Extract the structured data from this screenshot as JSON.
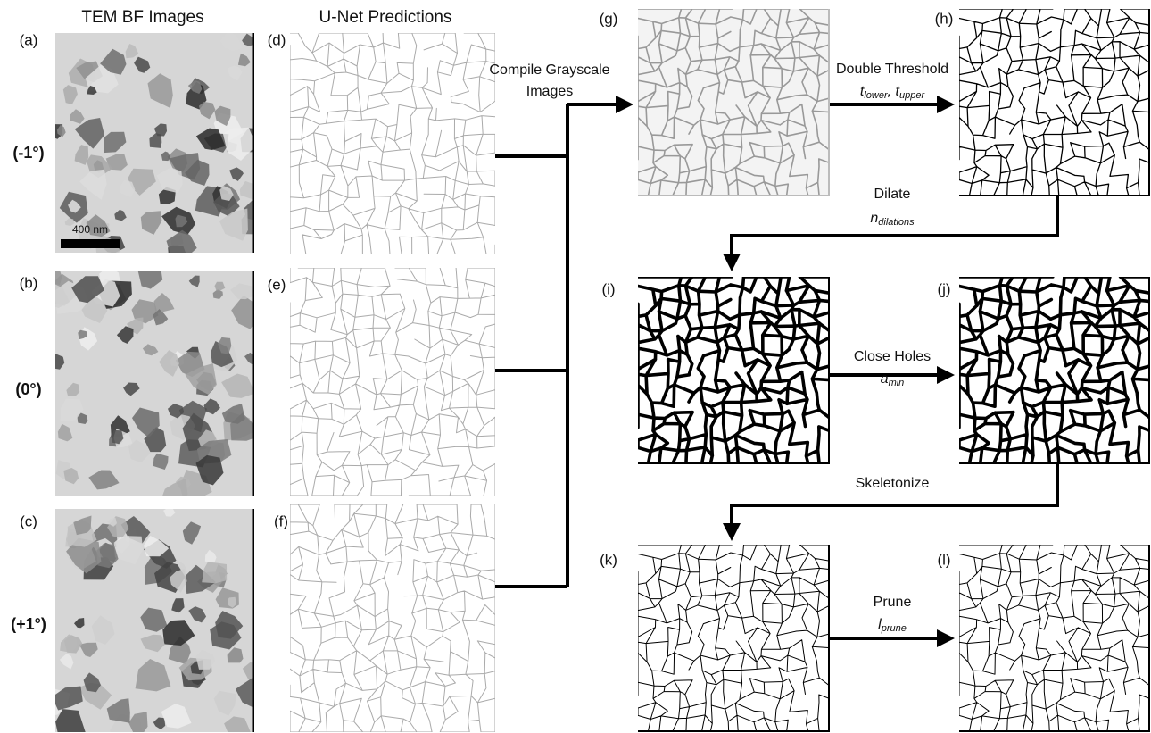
{
  "columns": {
    "tem": "TEM BF Images",
    "unet": "U-Net Predictions"
  },
  "rows": [
    "(-1°)",
    "(0°)",
    "(+1°)"
  ],
  "panels": [
    "(a)",
    "(b)",
    "(c)",
    "(d)",
    "(e)",
    "(f)",
    "(g)",
    "(h)",
    "(i)",
    "(j)",
    "(k)",
    "(l)"
  ],
  "scale_bar": "400 nm",
  "steps": [
    {
      "label": [
        "Compile Grayscale",
        "Images"
      ]
    },
    {
      "label": [
        "Double Threshold"
      ],
      "param": [
        {
          "base": "t",
          "sub": "lower"
        },
        {
          "base": ", t",
          "sub": "upper"
        }
      ]
    },
    {
      "label": [
        "Dilate"
      ],
      "param": [
        {
          "base": "n",
          "sub": "dilations"
        }
      ]
    },
    {
      "label": [
        "Close Holes"
      ],
      "param": [
        {
          "base": "a",
          "sub": "min"
        }
      ]
    },
    {
      "label": [
        "Skeletonize"
      ]
    },
    {
      "label": [
        "Prune"
      ],
      "param": [
        {
          "base": "l",
          "sub": "prune"
        }
      ]
    }
  ]
}
